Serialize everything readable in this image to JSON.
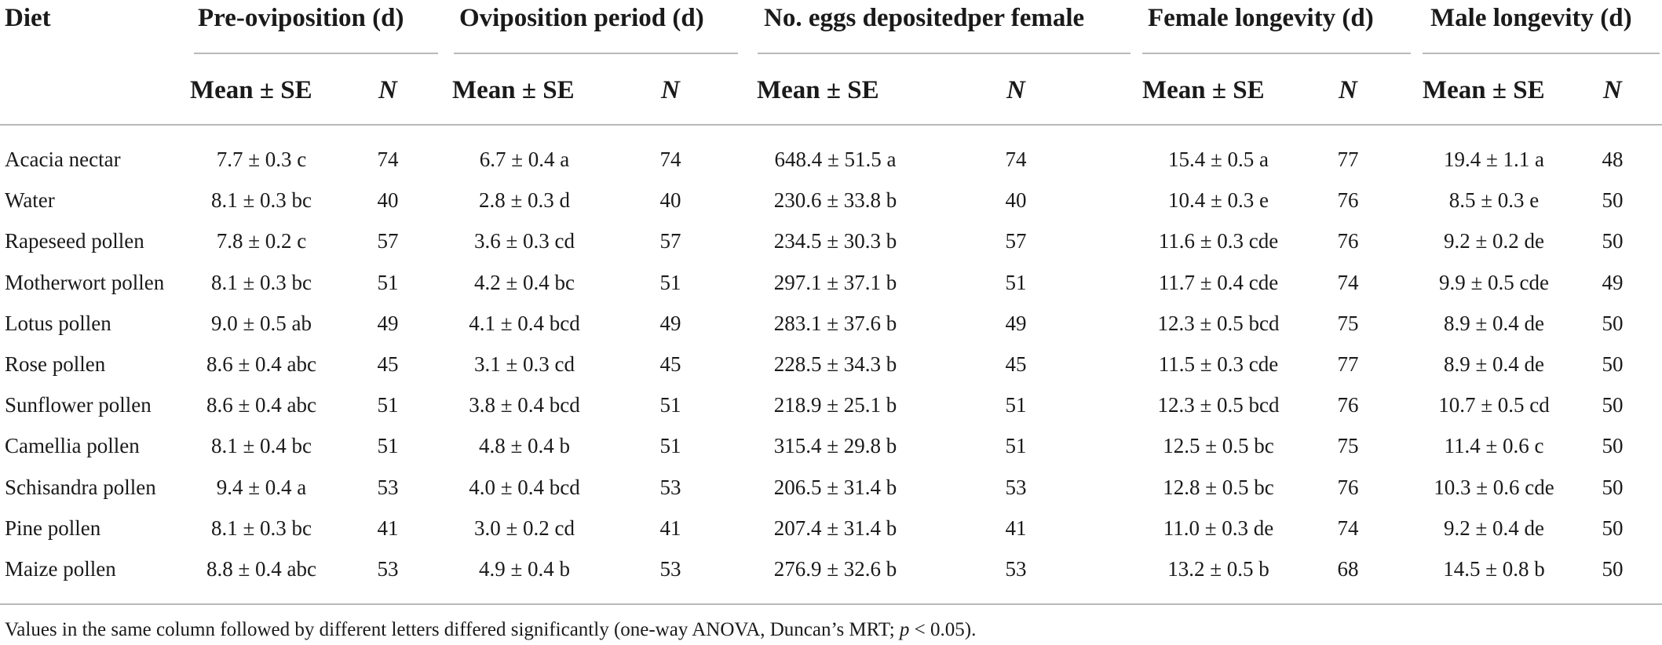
{
  "table": {
    "group_headers": {
      "diet": "Diet",
      "pre_oviposition": "Pre-oviposition (d)",
      "oviposition_period": "Oviposition period (d)",
      "eggs": "No. eggs depositedper female",
      "female_longevity": "Female longevity (d)",
      "male_longevity": "Male longevity (d)"
    },
    "sub_headers": {
      "mean_se": "Mean ± SE",
      "n": "N"
    },
    "rows": [
      {
        "diet": "Acacia nectar",
        "pre": "7.7 ± 0.3 c",
        "pre_n": "74",
        "ovi": "6.7 ± 0.4 a",
        "ovi_n": "74",
        "eggs": "648.4 ± 51.5 a",
        "eggs_n": "74",
        "fem": "15.4 ± 0.5 a",
        "fem_n": "77",
        "male": "19.4 ± 1.1 a",
        "male_n": "48"
      },
      {
        "diet": "Water",
        "pre": "8.1 ± 0.3 bc",
        "pre_n": "40",
        "ovi": "2.8 ± 0.3 d",
        "ovi_n": "40",
        "eggs": "230.6 ± 33.8 b",
        "eggs_n": "40",
        "fem": "10.4 ± 0.3 e",
        "fem_n": "76",
        "male": "8.5 ± 0.3 e",
        "male_n": "50"
      },
      {
        "diet": "Rapeseed pollen",
        "pre": "7.8 ± 0.2 c",
        "pre_n": "57",
        "ovi": "3.6 ± 0.3 cd",
        "ovi_n": "57",
        "eggs": "234.5 ± 30.3 b",
        "eggs_n": "57",
        "fem": "11.6 ± 0.3 cde",
        "fem_n": "76",
        "male": "9.2 ± 0.2 de",
        "male_n": "50"
      },
      {
        "diet": "Motherwort pollen",
        "pre": "8.1 ± 0.3 bc",
        "pre_n": "51",
        "ovi": "4.2 ± 0.4 bc",
        "ovi_n": "51",
        "eggs": "297.1 ± 37.1 b",
        "eggs_n": "51",
        "fem": "11.7 ± 0.4 cde",
        "fem_n": "74",
        "male": "9.9 ± 0.5 cde",
        "male_n": "49"
      },
      {
        "diet": "Lotus pollen",
        "pre": "9.0 ± 0.5 ab",
        "pre_n": "49",
        "ovi": "4.1 ± 0.4 bcd",
        "ovi_n": "49",
        "eggs": "283.1 ± 37.6 b",
        "eggs_n": "49",
        "fem": "12.3 ± 0.5 bcd",
        "fem_n": "75",
        "male": "8.9 ± 0.4 de",
        "male_n": "50"
      },
      {
        "diet": "Rose pollen",
        "pre": "8.6 ± 0.4 abc",
        "pre_n": "45",
        "ovi": "3.1 ± 0.3 cd",
        "ovi_n": "45",
        "eggs": "228.5 ± 34.3 b",
        "eggs_n": "45",
        "fem": "11.5 ± 0.3 cde",
        "fem_n": "77",
        "male": "8.9 ± 0.4 de",
        "male_n": "50"
      },
      {
        "diet": "Sunflower pollen",
        "pre": "8.6 ± 0.4 abc",
        "pre_n": "51",
        "ovi": "3.8 ± 0.4 bcd",
        "ovi_n": "51",
        "eggs": "218.9 ± 25.1 b",
        "eggs_n": "51",
        "fem": "12.3 ± 0.5 bcd",
        "fem_n": "76",
        "male": "10.7 ± 0.5 cd",
        "male_n": "50"
      },
      {
        "diet": "Camellia pollen",
        "pre": "8.1 ± 0.4 bc",
        "pre_n": "51",
        "ovi": "4.8 ± 0.4 b",
        "ovi_n": "51",
        "eggs": "315.4 ± 29.8 b",
        "eggs_n": "51",
        "fem": "12.5 ± 0.5 bc",
        "fem_n": "75",
        "male": "11.4 ± 0.6 c",
        "male_n": "50"
      },
      {
        "diet": "Schisandra pollen",
        "pre": "9.4 ± 0.4 a",
        "pre_n": "53",
        "ovi": "4.0 ± 0.4 bcd",
        "ovi_n": "53",
        "eggs": "206.5 ± 31.4 b",
        "eggs_n": "53",
        "fem": "12.8 ± 0.5 bc",
        "fem_n": "76",
        "male": "10.3 ± 0.6 cde",
        "male_n": "50"
      },
      {
        "diet": "Pine pollen",
        "pre": "8.1 ± 0.3 bc",
        "pre_n": "41",
        "ovi": "3.0 ± 0.2 cd",
        "ovi_n": "41",
        "eggs": "207.4 ± 31.4 b",
        "eggs_n": "41",
        "fem": "11.0 ± 0.3 de",
        "fem_n": "74",
        "male": "9.2 ± 0.4 de",
        "male_n": "50"
      },
      {
        "diet": "Maize pollen",
        "pre": "8.8 ± 0.4 abc",
        "pre_n": "53",
        "ovi": "4.9 ± 0.4 b",
        "ovi_n": "53",
        "eggs": "276.9 ± 32.6 b",
        "eggs_n": "53",
        "fem": "13.2 ± 0.5 b",
        "fem_n": "68",
        "male": "14.5 ± 0.8 b",
        "male_n": "50"
      }
    ]
  },
  "footnote": {
    "prefix": "Values in the same column followed by different letters differed significantly (one-way ANOVA, Duncan’s MRT; ",
    "p_symbol": "p",
    "suffix": " < 0.05)."
  }
}
